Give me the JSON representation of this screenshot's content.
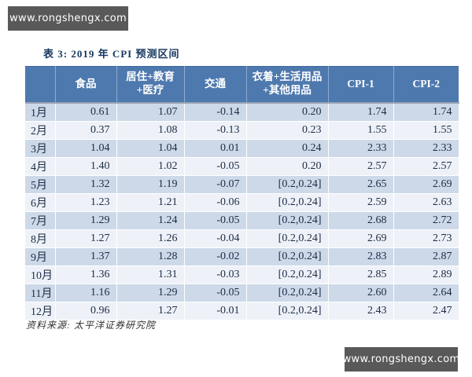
{
  "watermark": {
    "top_text": "www.rongshengx.com",
    "bottom_text": "www.rongshengx.com"
  },
  "document": {
    "table_title": "表 3: 2019 年 CPI 预测区间",
    "source_note": "资料来源: 太平洋证券研究院"
  },
  "colors": {
    "header_blue": "#4e79ae",
    "row_shaded": "#cdd9e9",
    "row_light": "#eef2f8",
    "title_navy": "#17375e",
    "banner_gray": "#595959"
  },
  "table": {
    "columns": [
      "",
      "食品",
      "居住+教育+医疗",
      "交通",
      "衣着+生活用品+其他用品",
      "CPI-1",
      "CPI-2"
    ],
    "rows": [
      {
        "month": "1月",
        "values": [
          "0.61",
          "1.07",
          "-0.14",
          "0.20",
          "1.74",
          "1.74"
        ]
      },
      {
        "month": "2月",
        "values": [
          "0.37",
          "1.08",
          "-0.13",
          "0.23",
          "1.55",
          "1.55"
        ]
      },
      {
        "month": "3月",
        "values": [
          "1.04",
          "1.04",
          "0.01",
          "0.24",
          "2.33",
          "2.33"
        ]
      },
      {
        "month": "4月",
        "values": [
          "1.40",
          "1.02",
          "-0.05",
          "0.20",
          "2.57",
          "2.57"
        ]
      },
      {
        "month": "5月",
        "values": [
          "1.32",
          "1.19",
          "-0.07",
          "[0.2,0.24]",
          "2.65",
          "2.69"
        ]
      },
      {
        "month": "6月",
        "values": [
          "1.23",
          "1.21",
          "-0.06",
          "[0.2,0.24]",
          "2.59",
          "2.63"
        ]
      },
      {
        "month": "7月",
        "values": [
          "1.29",
          "1.24",
          "-0.05",
          "[0.2,0.24]",
          "2.68",
          "2.72"
        ]
      },
      {
        "month": "8月",
        "values": [
          "1.27",
          "1.26",
          "-0.04",
          "[0.2,0.24]",
          "2.69",
          "2.73"
        ]
      },
      {
        "month": "9月",
        "values": [
          "1.37",
          "1.28",
          "-0.02",
          "[0.2,0.24]",
          "2.83",
          "2.87"
        ]
      },
      {
        "month": "10月",
        "values": [
          "1.36",
          "1.31",
          "-0.03",
          "[0.2,0.24]",
          "2.85",
          "2.89"
        ]
      },
      {
        "month": "11月",
        "values": [
          "1.16",
          "1.29",
          "-0.05",
          "[0.2,0.24]",
          "2.60",
          "2.64"
        ]
      },
      {
        "month": "12月",
        "values": [
          "0.96",
          "1.27",
          "-0.01",
          "[0.2,0.24]",
          "2.43",
          "2.47"
        ]
      }
    ]
  }
}
